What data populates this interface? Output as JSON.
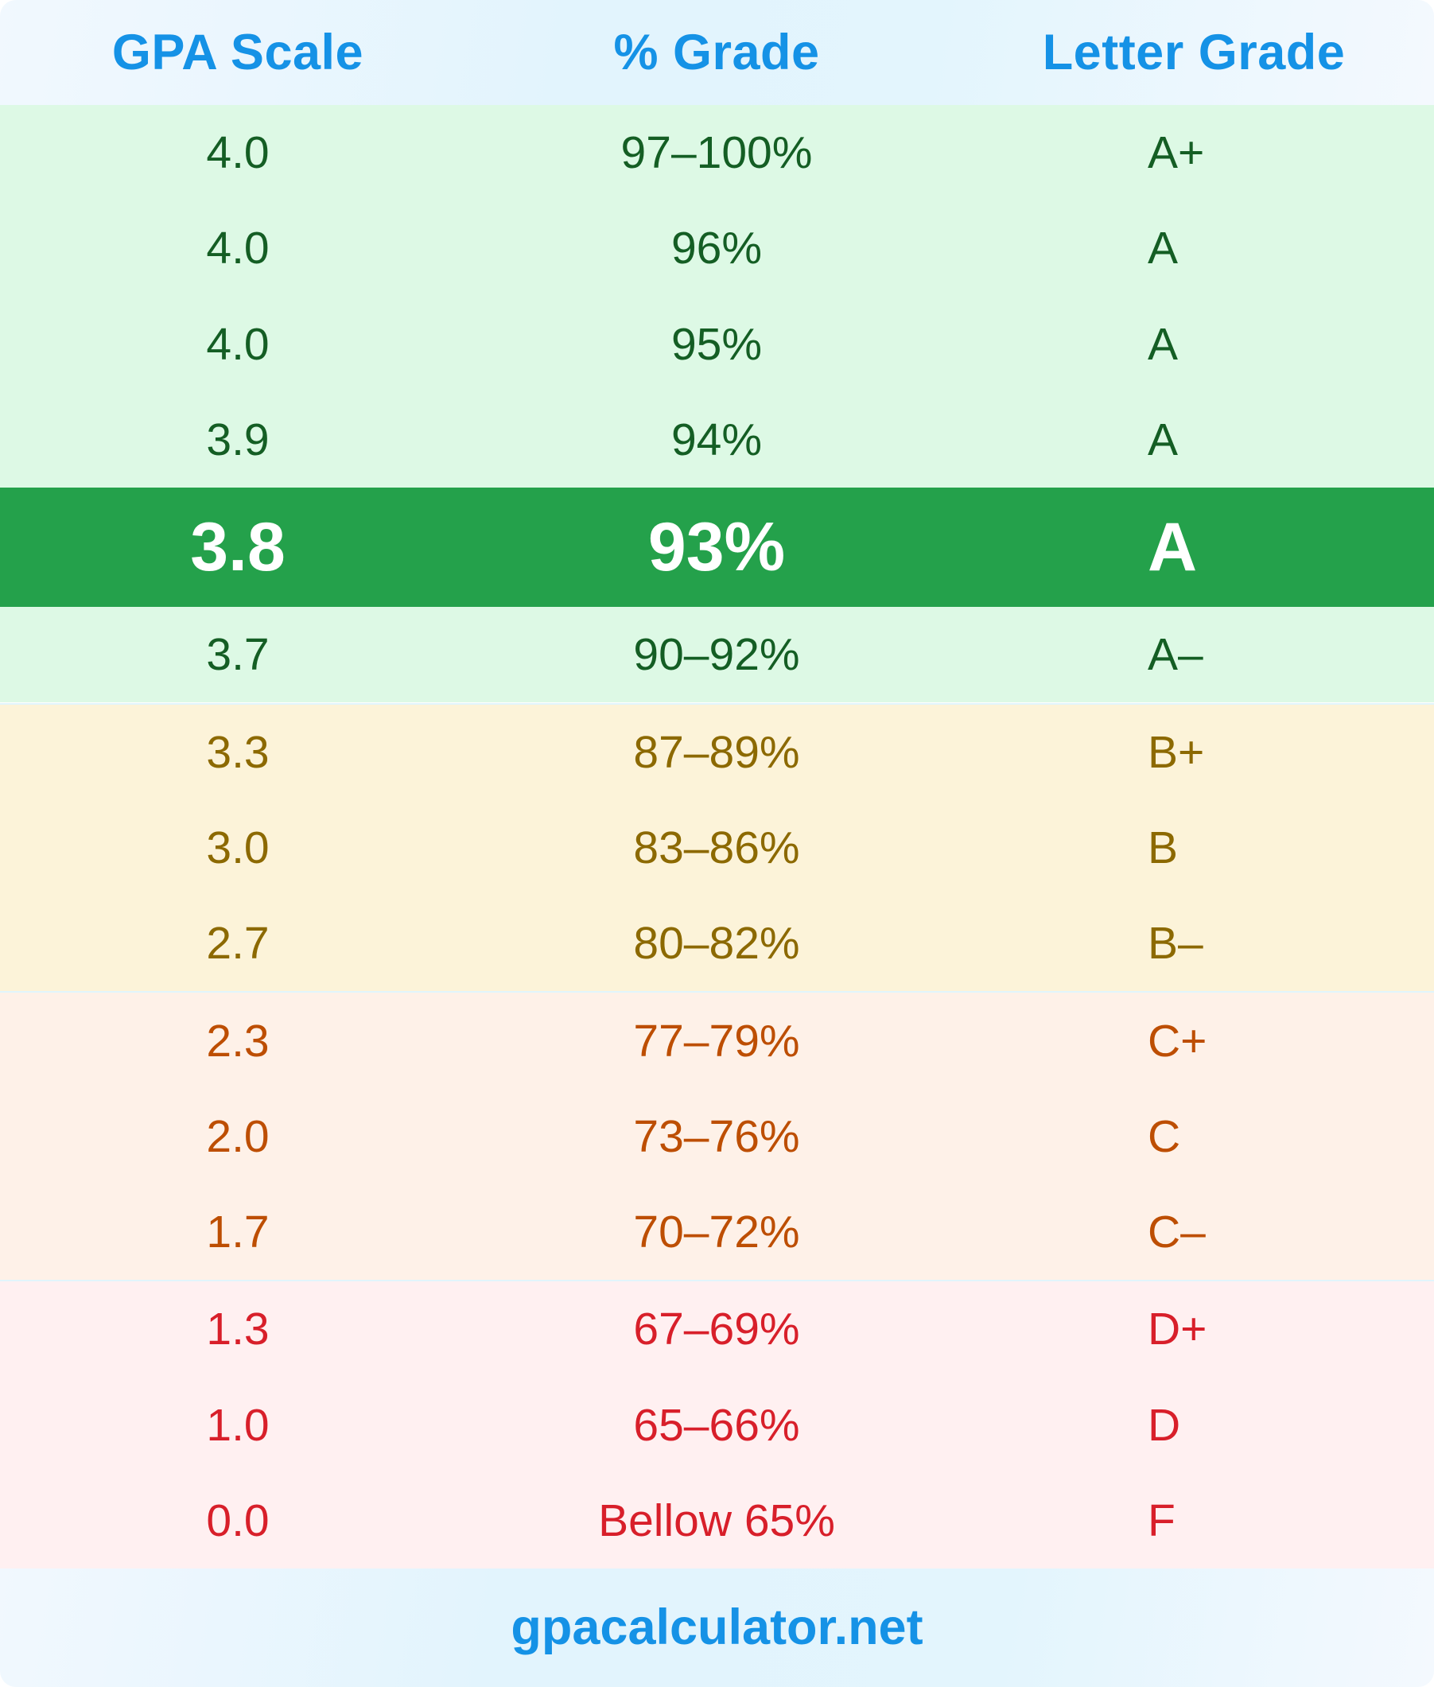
{
  "table": {
    "headers": [
      "GPA Scale",
      "% Grade",
      "Letter Grade"
    ],
    "rows": [
      {
        "gpa": "4.0",
        "percent": "97–100%",
        "letter": "A+",
        "band": "green"
      },
      {
        "gpa": "4.0",
        "percent": "96%",
        "letter": "A",
        "band": "green"
      },
      {
        "gpa": "4.0",
        "percent": "95%",
        "letter": "A",
        "band": "green"
      },
      {
        "gpa": "3.9",
        "percent": "94%",
        "letter": "A",
        "band": "green"
      },
      {
        "gpa": "3.8",
        "percent": "93%",
        "letter": "A",
        "band": "highlight"
      },
      {
        "gpa": "3.7",
        "percent": "90–92%",
        "letter": "A–",
        "band": "green"
      },
      {
        "gpa": "3.3",
        "percent": "87–89%",
        "letter": "B+",
        "band": "yellow"
      },
      {
        "gpa": "3.0",
        "percent": "83–86%",
        "letter": "B",
        "band": "yellow"
      },
      {
        "gpa": "2.7",
        "percent": "80–82%",
        "letter": "B–",
        "band": "yellow"
      },
      {
        "gpa": "2.3",
        "percent": "77–79%",
        "letter": "C+",
        "band": "orange"
      },
      {
        "gpa": "2.0",
        "percent": "73–76%",
        "letter": "C",
        "band": "orange"
      },
      {
        "gpa": "1.7",
        "percent": "70–72%",
        "letter": "C–",
        "band": "orange"
      },
      {
        "gpa": "1.3",
        "percent": "67–69%",
        "letter": "D+",
        "band": "red"
      },
      {
        "gpa": "1.0",
        "percent": "65–66%",
        "letter": "D",
        "band": "red"
      },
      {
        "gpa": "0.0",
        "percent": "Bellow 65%",
        "letter": "F",
        "band": "red"
      }
    ]
  },
  "footer": {
    "site": "gpacalculator.net"
  },
  "colors": {
    "header_text": "#1592e6",
    "highlight_bg": "#24a14b",
    "highlight_text": "#ffffff",
    "green_bg": "#ddf9e5",
    "green_text": "#145e24",
    "yellow_bg": "#fcf3d9",
    "yellow_text": "#8c6900",
    "orange_bg": "#fef1e8",
    "orange_text": "#bd4e02",
    "red_bg": "#fff0f1",
    "red_text": "#d81f2a",
    "separator": "#e1f5fc"
  }
}
